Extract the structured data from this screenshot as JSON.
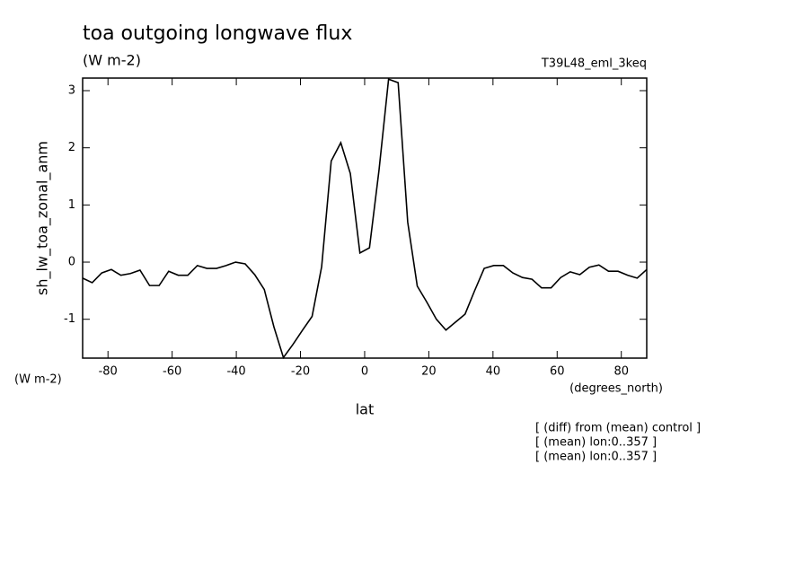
{
  "chart_data": {
    "type": "line",
    "title": "toa outgoing longwave flux",
    "units": "(W m-2)",
    "experiment": "T39L48_eml_3keq",
    "y_label": "sh_lw_toa_zonal_anm",
    "y_units": "(W m-2)",
    "x_units": "(degrees_north)",
    "x_label": "lat",
    "notes": [
      "[ (diff) from (mean) control ]",
      "[ (mean) lon:0..357 ]",
      "[ (mean) lon:0..357 ]"
    ],
    "x": [
      -87.9,
      -84.92,
      -81.94,
      -78.96,
      -75.98,
      -73,
      -70.02,
      -67.04,
      -64.06,
      -61.08,
      -58.1,
      -55.12,
      -52.14,
      -49.16,
      -46.18,
      -43.2,
      -40.22,
      -37.24,
      -34.26,
      -31.28,
      -28.3,
      -25.32,
      -22.34,
      -19.36,
      -16.38,
      -13.4,
      -10.42,
      -7.44,
      -4.46,
      -1.48,
      1.5,
      4.48,
      7.46,
      10.44,
      13.42,
      16.4,
      19.38,
      22.36,
      25.34,
      28.32,
      31.3,
      34.28,
      37.26,
      40.24,
      43.22,
      46.2,
      49.18,
      52.16,
      55.14,
      58.12,
      61.1,
      64.08,
      67.06,
      70.04,
      73.02,
      76,
      78.98,
      81.96,
      84.94,
      87.92
    ],
    "series": [
      {
        "color": "#000000",
        "values": [
          -0.28,
          -0.36,
          -0.19,
          -0.13,
          -0.23,
          -0.2,
          -0.14,
          -0.41,
          -0.41,
          -0.16,
          -0.23,
          -0.23,
          -0.06,
          -0.11,
          -0.11,
          -0.06,
          0,
          -0.03,
          -0.22,
          -0.48,
          -1.13,
          -1.67,
          -1.44,
          -1.19,
          -0.95,
          -0.08,
          1.77,
          2.09,
          1.55,
          0.16,
          0.25,
          1.61,
          3.2,
          3.14,
          0.7,
          -0.42,
          -0.7,
          -1.0,
          -1.19,
          -1.05,
          -0.91,
          -0.5,
          -0.11,
          -0.06,
          -0.06,
          -0.19,
          -0.27,
          -0.3,
          -0.45,
          -0.45,
          -0.27,
          -0.17,
          -0.22,
          -0.09,
          -0.05,
          -0.16,
          -0.16,
          -0.23,
          -0.28,
          -0.13
        ]
      }
    ],
    "xlim": [
      -87.9,
      87.92
    ],
    "ylim": [
      -1.68,
      3.22
    ],
    "xticks": [
      -80,
      -60,
      -40,
      -20,
      0,
      20,
      40,
      60,
      80
    ],
    "yticks": [
      -1,
      0,
      1,
      2,
      3
    ]
  }
}
